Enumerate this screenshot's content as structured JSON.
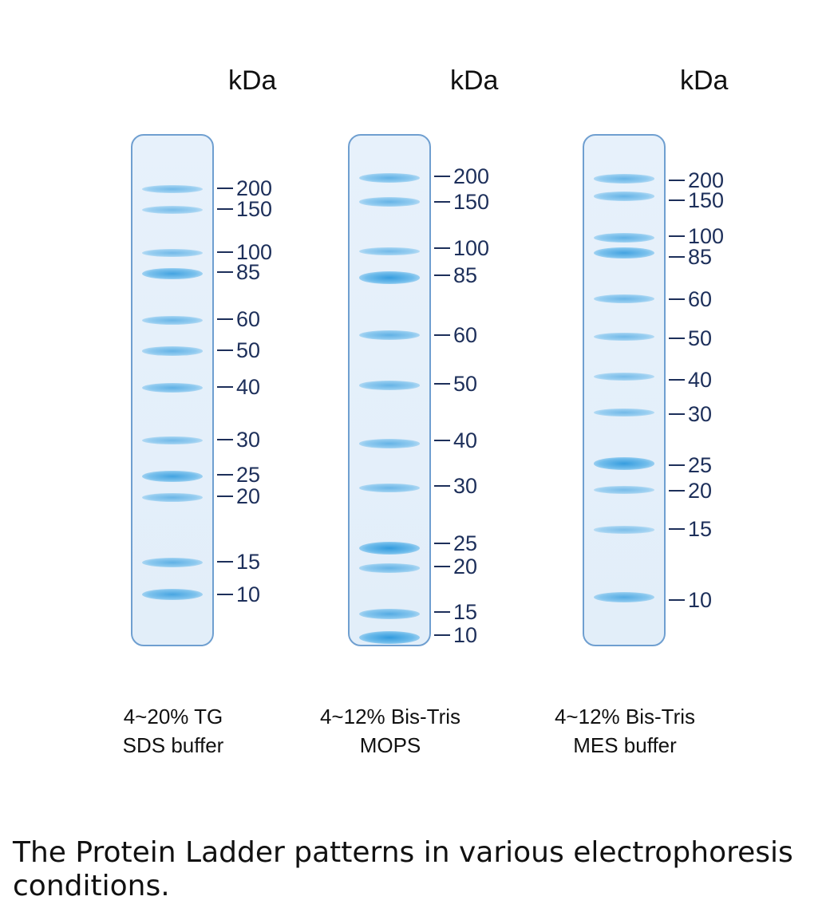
{
  "unit_label": "kDa",
  "lanes": [
    {
      "condition_line1": "4~20% TG",
      "condition_line2": "SDS buffer",
      "markers": [
        {
          "label": "200",
          "strength": 0.45
        },
        {
          "label": "150",
          "strength": 0.4
        },
        {
          "label": "100",
          "strength": 0.45
        },
        {
          "label": "85",
          "strength": 0.85
        },
        {
          "label": "60",
          "strength": 0.5
        },
        {
          "label": "50",
          "strength": 0.55
        },
        {
          "label": "40",
          "strength": 0.6
        },
        {
          "label": "30",
          "strength": 0.45
        },
        {
          "label": "25",
          "strength": 0.85
        },
        {
          "label": "20",
          "strength": 0.5
        },
        {
          "label": "15",
          "strength": 0.6
        },
        {
          "label": "10",
          "strength": 0.8
        }
      ]
    },
    {
      "condition_line1": "4~12% Bis-Tris",
      "condition_line2": "MOPS",
      "markers": [
        {
          "label": "200",
          "strength": 0.6
        },
        {
          "label": "150",
          "strength": 0.55
        },
        {
          "label": "100",
          "strength": 0.45
        },
        {
          "label": "85",
          "strength": 0.95
        },
        {
          "label": "60",
          "strength": 0.6
        },
        {
          "label": "50",
          "strength": 0.55
        },
        {
          "label": "40",
          "strength": 0.55
        },
        {
          "label": "30",
          "strength": 0.5
        },
        {
          "label": "25",
          "strength": 1.0
        },
        {
          "label": "20",
          "strength": 0.55
        },
        {
          "label": "15",
          "strength": 0.7
        },
        {
          "label": "10",
          "strength": 1.0
        }
      ]
    },
    {
      "condition_line1": "4~12% Bis-Tris",
      "condition_line2": "MES buffer",
      "markers": [
        {
          "label": "200",
          "strength": 0.55
        },
        {
          "label": "150",
          "strength": 0.55
        },
        {
          "label": "100",
          "strength": 0.6
        },
        {
          "label": "85",
          "strength": 0.85
        },
        {
          "label": "60",
          "strength": 0.5
        },
        {
          "label": "50",
          "strength": 0.45
        },
        {
          "label": "40",
          "strength": 0.4
        },
        {
          "label": "30",
          "strength": 0.45
        },
        {
          "label": "25",
          "strength": 0.95
        },
        {
          "label": "20",
          "strength": 0.4
        },
        {
          "label": "15",
          "strength": 0.35
        },
        {
          "label": "10",
          "strength": 0.7
        }
      ]
    }
  ],
  "caption": "The Protein Ladder patterns in various electrophoresis conditions.",
  "colors": {
    "band": "#2a96dc",
    "lane_border": "#6f9fd0",
    "lane_fill": "#e4f0fa",
    "marker": "#1d2f5a"
  }
}
